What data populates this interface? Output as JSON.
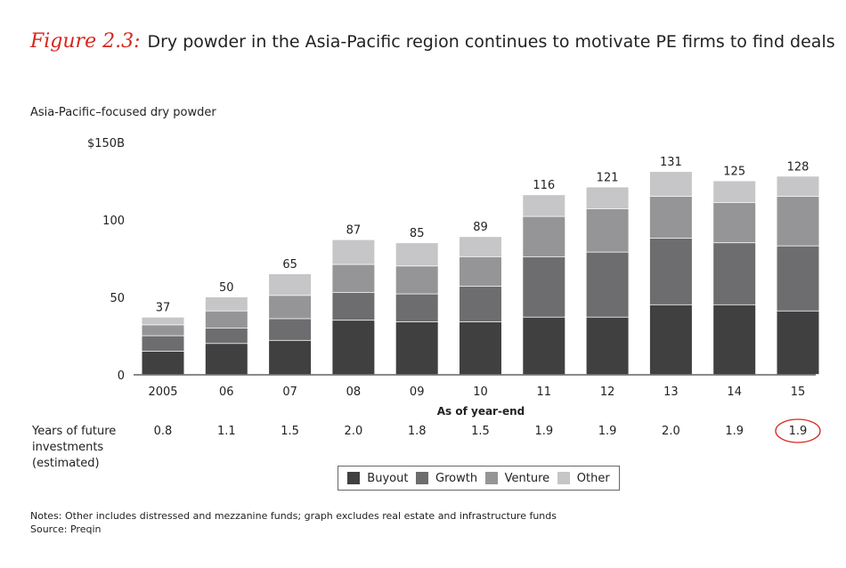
{
  "figure": {
    "label": "Figure 2.3:",
    "title": "Dry powder in the Asia-Pacific region continues to motivate PE firms to find deals"
  },
  "chart_data": {
    "type": "bar",
    "stacked": true,
    "ytitle": "Asia-Pacific–focused dry powder",
    "ylim": [
      0,
      150
    ],
    "yticks": [
      {
        "value": 0,
        "label": "0"
      },
      {
        "value": 50,
        "label": "50"
      },
      {
        "value": 100,
        "label": "100"
      },
      {
        "value": 150,
        "label": "$150B"
      }
    ],
    "xlabel": "As of year-end",
    "categories": [
      "2005",
      "06",
      "07",
      "08",
      "09",
      "10",
      "11",
      "12",
      "13",
      "14",
      "15"
    ],
    "totals": [
      37,
      50,
      65,
      87,
      85,
      89,
      116,
      121,
      131,
      125,
      128
    ],
    "series": [
      {
        "name": "Buyout",
        "color": "#404040",
        "values": [
          15,
          20,
          22,
          35,
          34,
          34,
          37,
          37,
          45,
          45,
          41
        ]
      },
      {
        "name": "Growth",
        "color": "#6d6d70",
        "values": [
          10,
          10,
          14,
          18,
          18,
          23,
          39,
          42,
          43,
          40,
          42
        ]
      },
      {
        "name": "Venture",
        "color": "#959598",
        "values": [
          7,
          11,
          15,
          18,
          18,
          19,
          26,
          28,
          27,
          26,
          32
        ]
      },
      {
        "name": "Other",
        "color": "#c6c6c8",
        "values": [
          5,
          9,
          14,
          16,
          15,
          13,
          14,
          14,
          16,
          14,
          13
        ]
      }
    ],
    "years_label": [
      "Years of future",
      "investments",
      "(estimated)"
    ],
    "years": [
      "0.8",
      "1.1",
      "1.5",
      "2.0",
      "1.8",
      "1.5",
      "1.9",
      "1.9",
      "2.0",
      "1.9",
      "1.9"
    ],
    "highlight_index": 10,
    "highlight_color": "#d6271d"
  },
  "notes": {
    "line1": "Notes: Other includes distressed and mezzanine funds; graph excludes real estate and infrastructure funds",
    "line2": "Source: Preqin"
  }
}
